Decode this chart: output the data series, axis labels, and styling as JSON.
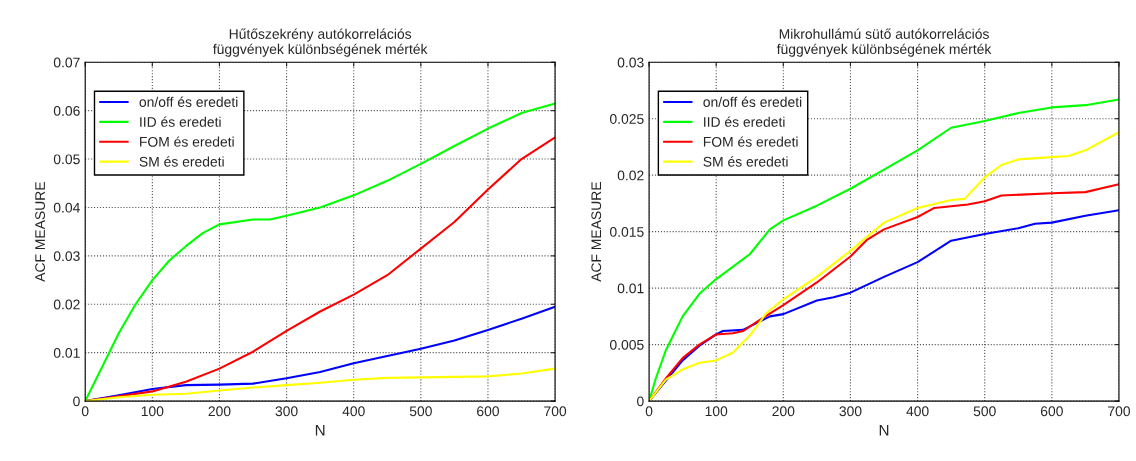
{
  "chart_data": [
    {
      "type": "line",
      "title": "Hűtőszekrény autókorrelációs\nfüggvények különbségének mérték",
      "xlabel": "N",
      "ylabel": "ACF MEASURE",
      "xlim": [
        0,
        700
      ],
      "ylim": [
        0,
        0.07
      ],
      "xticks": [
        0,
        100,
        200,
        300,
        400,
        500,
        600,
        700
      ],
      "yticks": [
        0,
        0.01,
        0.02,
        0.03,
        0.04,
        0.05,
        0.06,
        0.07
      ],
      "grid": true,
      "legend": "top left",
      "line_style": "solid",
      "series": [
        {
          "name": "on/off és eredeti",
          "color": "#0000ff",
          "x": [
            0,
            50,
            100,
            150,
            200,
            250,
            300,
            350,
            400,
            450,
            500,
            550,
            600,
            650,
            700
          ],
          "values": [
            0,
            0.0012,
            0.0025,
            0.0033,
            0.0034,
            0.0036,
            0.0047,
            0.006,
            0.0078,
            0.0093,
            0.0108,
            0.0125,
            0.0147,
            0.017,
            0.0195
          ]
        },
        {
          "name": "IID és eredeti",
          "color": "#00ff00",
          "x": [
            0,
            25,
            50,
            75,
            100,
            125,
            150,
            175,
            200,
            250,
            275,
            300,
            350,
            400,
            450,
            500,
            550,
            600,
            650,
            700
          ],
          "values": [
            0,
            0.007,
            0.014,
            0.02,
            0.025,
            0.029,
            0.032,
            0.0347,
            0.0365,
            0.0375,
            0.0375,
            0.0383,
            0.04,
            0.0425,
            0.0455,
            0.049,
            0.0527,
            0.0563,
            0.0595,
            0.0615
          ]
        },
        {
          "name": "FOM és eredeti",
          "color": "#ff0000",
          "x": [
            0,
            50,
            100,
            150,
            200,
            250,
            300,
            350,
            400,
            450,
            500,
            550,
            600,
            650,
            700
          ],
          "values": [
            0,
            0.001,
            0.002,
            0.004,
            0.0067,
            0.0102,
            0.0145,
            0.0185,
            0.022,
            0.026,
            0.0315,
            0.037,
            0.0437,
            0.05,
            0.0545
          ]
        },
        {
          "name": "SM és eredeti",
          "color": "#ffff00",
          "x": [
            0,
            50,
            100,
            150,
            200,
            250,
            300,
            350,
            400,
            450,
            500,
            550,
            600,
            650,
            700
          ],
          "values": [
            0,
            0.0008,
            0.0013,
            0.0015,
            0.0022,
            0.0028,
            0.0033,
            0.0038,
            0.0044,
            0.0048,
            0.0049,
            0.005,
            0.0051,
            0.0057,
            0.0067
          ]
        }
      ]
    },
    {
      "type": "line",
      "title": "Mikrohullámú sütő autókorrelációs\nfüggvények különbségének mérték",
      "xlabel": "N",
      "ylabel": "ACF MEASURE",
      "xlim": [
        0,
        700
      ],
      "ylim": [
        0,
        0.03
      ],
      "xticks": [
        0,
        100,
        200,
        300,
        400,
        500,
        600,
        700
      ],
      "yticks": [
        0,
        0.005,
        0.01,
        0.015,
        0.02,
        0.025,
        0.03
      ],
      "grid": true,
      "legend": "top left",
      "line_style": "solid",
      "series": [
        {
          "name": "on/off és eredeti",
          "color": "#0000ff",
          "x": [
            0,
            50,
            75,
            100,
            110,
            140,
            160,
            180,
            200,
            250,
            275,
            300,
            350,
            400,
            450,
            500,
            550,
            575,
            600,
            650,
            700
          ],
          "values": [
            0,
            0.0036,
            0.0049,
            0.0059,
            0.0062,
            0.0063,
            0.0069,
            0.0075,
            0.0077,
            0.0089,
            0.0092,
            0.0096,
            0.011,
            0.0123,
            0.0142,
            0.0148,
            0.0153,
            0.0157,
            0.0158,
            0.0164,
            0.0169
          ]
        },
        {
          "name": "IID és eredeti",
          "color": "#00ff00",
          "x": [
            0,
            10,
            25,
            50,
            75,
            100,
            150,
            180,
            200,
            250,
            300,
            350,
            400,
            450,
            500,
            550,
            600,
            650,
            700
          ],
          "values": [
            0,
            0.002,
            0.0045,
            0.0075,
            0.0095,
            0.0108,
            0.013,
            0.0152,
            0.016,
            0.0173,
            0.0188,
            0.0205,
            0.0222,
            0.0242,
            0.0248,
            0.0255,
            0.026,
            0.0262,
            0.0267
          ]
        },
        {
          "name": "FOM és eredeti",
          "color": "#ff0000",
          "x": [
            0,
            25,
            50,
            75,
            100,
            125,
            140,
            160,
            200,
            250,
            300,
            325,
            350,
            400,
            425,
            475,
            500,
            525,
            600,
            650,
            700
          ],
          "values": [
            0,
            0.002,
            0.0038,
            0.005,
            0.0059,
            0.006,
            0.0062,
            0.007,
            0.0085,
            0.0105,
            0.0128,
            0.0143,
            0.0152,
            0.0163,
            0.0171,
            0.0174,
            0.0177,
            0.0182,
            0.0184,
            0.0185,
            0.0192
          ]
        },
        {
          "name": "SM és eredeti",
          "color": "#ffff00",
          "x": [
            0,
            25,
            50,
            75,
            100,
            125,
            150,
            175,
            200,
            250,
            300,
            350,
            400,
            450,
            470,
            500,
            525,
            550,
            600,
            625,
            650,
            700
          ],
          "values": [
            0,
            0.0019,
            0.0028,
            0.0034,
            0.0036,
            0.0043,
            0.0058,
            0.0078,
            0.009,
            0.011,
            0.0133,
            0.0158,
            0.0171,
            0.0178,
            0.0179,
            0.0198,
            0.0209,
            0.0214,
            0.0216,
            0.0217,
            0.0222,
            0.0238
          ]
        }
      ]
    }
  ]
}
